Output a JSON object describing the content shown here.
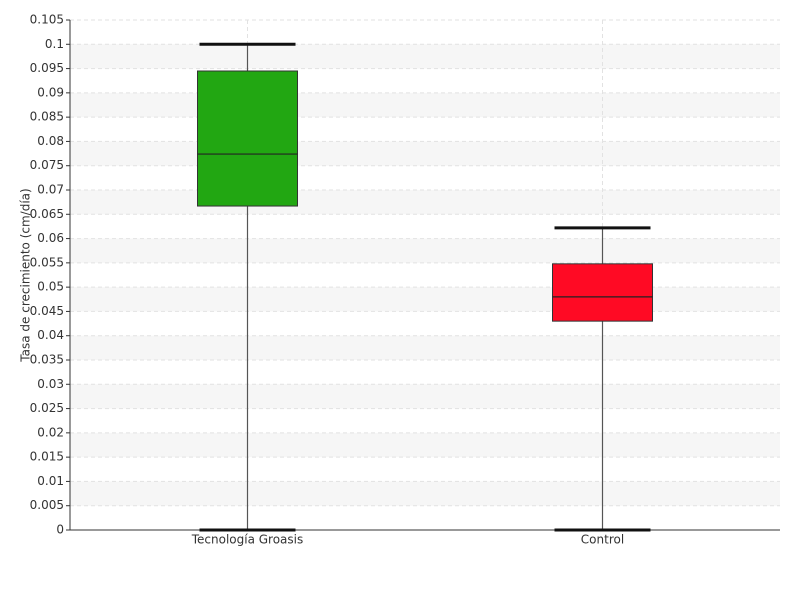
{
  "chart_data": {
    "type": "box",
    "y_label": "Tasa de crecimiento (cm/día)",
    "categories": [
      "Tecnología Groasis",
      "Control"
    ],
    "series": [
      {
        "color": "#22a712",
        "min": 0,
        "q1": 0.0667,
        "median": 0.0774,
        "q3": 0.0945,
        "max": 0.1
      },
      {
        "color": "#ff0a24",
        "min": 0,
        "q1": 0.043,
        "median": 0.048,
        "q3": 0.0548,
        "max": 0.0622
      }
    ],
    "ylim": [
      0,
      0.105
    ],
    "yticks": [
      0,
      0.005,
      0.01,
      0.015,
      0.02,
      0.025,
      0.03,
      0.035,
      0.04,
      0.045,
      0.05,
      0.055,
      0.06,
      0.065,
      0.07,
      0.075,
      0.08,
      0.085,
      0.09,
      0.095,
      0.1,
      0.105
    ],
    "grid": true
  }
}
